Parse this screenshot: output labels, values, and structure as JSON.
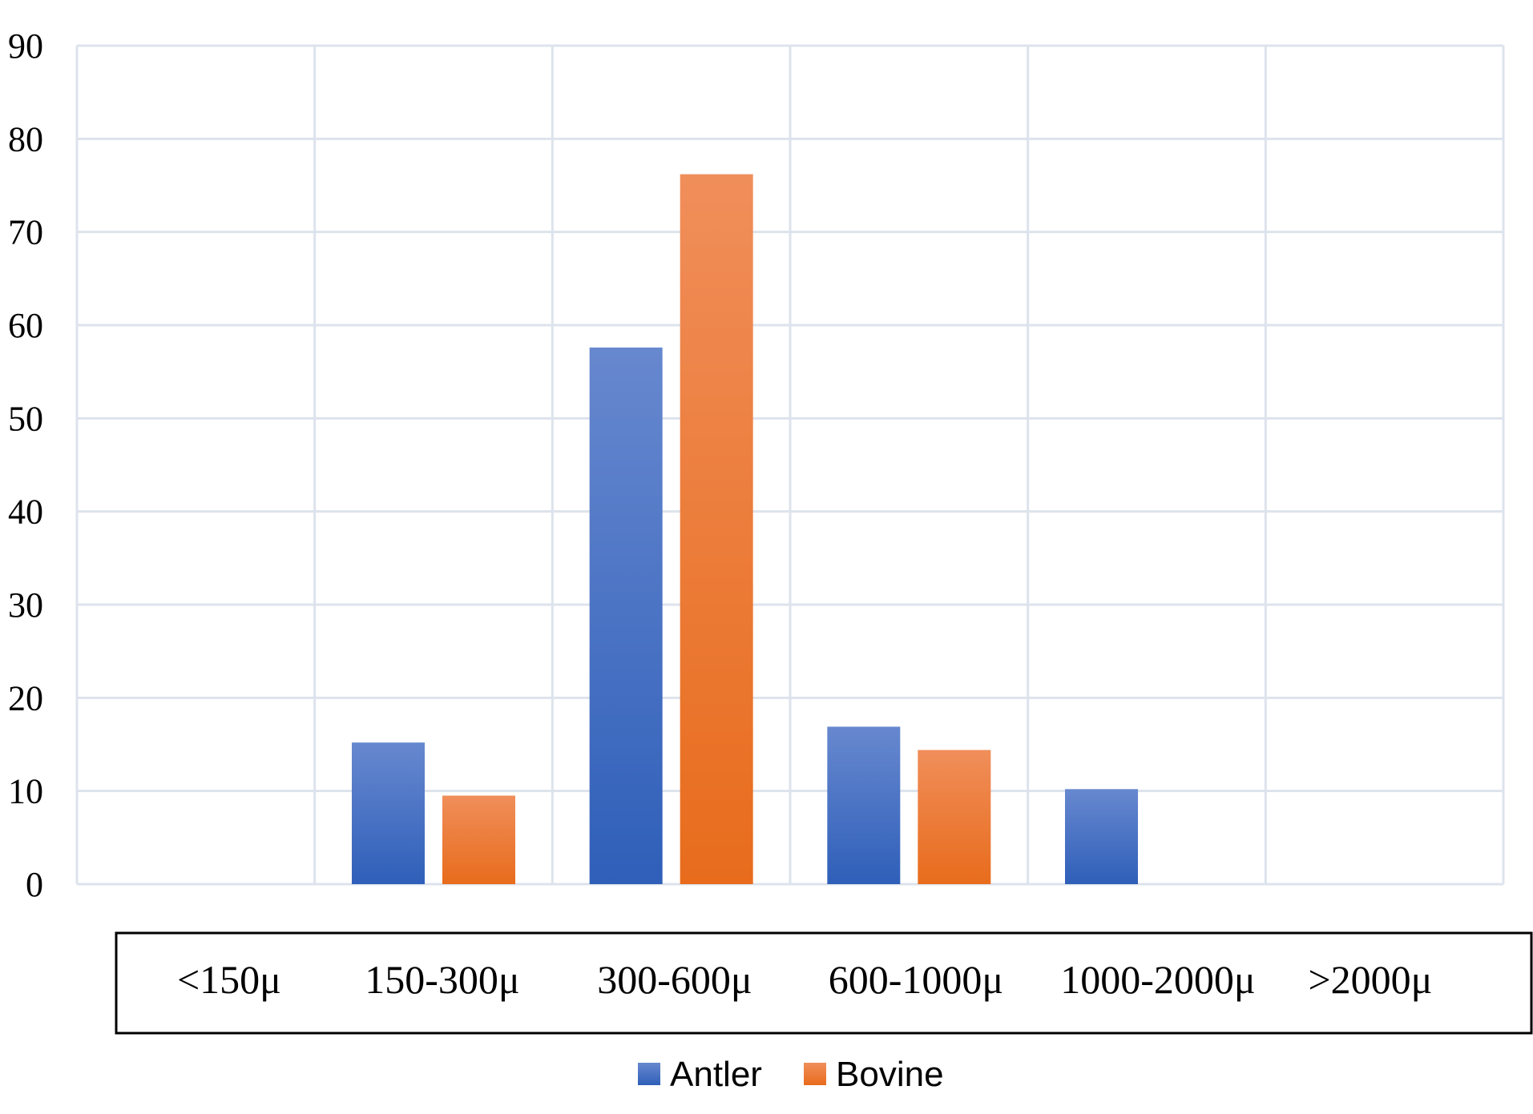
{
  "chart_data": {
    "type": "bar",
    "categories": [
      "<150μ",
      "150-300μ",
      "300-600μ",
      "600-1000μ",
      "1000-2000μ",
      ">2000μ"
    ],
    "series": [
      {
        "name": "Antler",
        "values": [
          0,
          15.2,
          57.6,
          16.9,
          10.2,
          0
        ],
        "color_top": "#6788cf",
        "color_bottom": "#2f5fb9"
      },
      {
        "name": "Bovine",
        "values": [
          0,
          9.5,
          76.2,
          14.4,
          0,
          0
        ],
        "color_top": "#f08e5a",
        "color_bottom": "#e86c1c"
      }
    ],
    "yticks": [
      0,
      10,
      20,
      30,
      40,
      50,
      60,
      70,
      80,
      90
    ],
    "ylim": [
      0,
      90
    ],
    "grid": true,
    "grid_color": "#dde3ec",
    "legend_position": "bottom",
    "title": "",
    "xlabel": "",
    "ylabel": ""
  }
}
